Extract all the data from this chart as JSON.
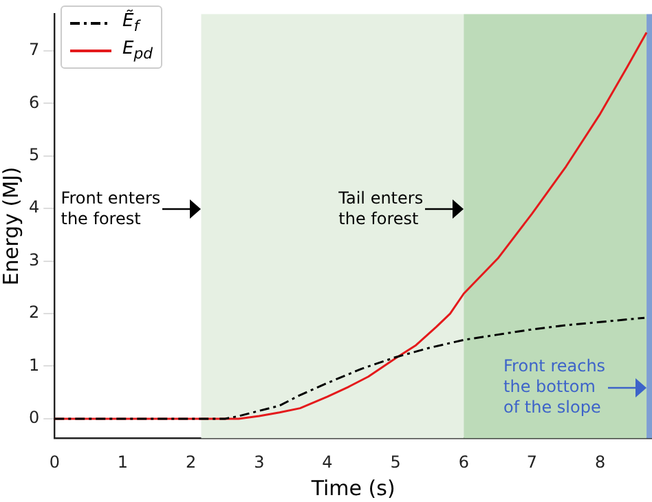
{
  "chart_data": {
    "type": "line",
    "xlabel": "Time (s)",
    "ylabel": "Energy (MJ)",
    "xlim": [
      0,
      8.76
    ],
    "ylim": [
      -0.37,
      7.7
    ],
    "xticks": [
      0,
      1,
      2,
      3,
      4,
      5,
      6,
      7,
      8
    ],
    "yticks": [
      0,
      1,
      2,
      3,
      4,
      5,
      6,
      7
    ],
    "grid": false,
    "legend": "top left",
    "marker": "none",
    "series": [
      {
        "name": "Ẽ$_{f}$",
        "color": "#000000",
        "line_style": "dashed",
        "x": [
          0,
          1,
          2,
          2.5,
          2.7,
          3,
          3.3,
          3.6,
          4,
          4.5,
          5,
          5.5,
          6,
          6.5,
          7,
          7.5,
          8,
          8.65
        ],
        "values": [
          0,
          0,
          0,
          0,
          0.05,
          0.15,
          0.25,
          0.45,
          0.68,
          0.95,
          1.17,
          1.35,
          1.5,
          1.6,
          1.7,
          1.78,
          1.84,
          1.92
        ]
      },
      {
        "name": "E$_{pd}$",
        "color": "#e41a1c",
        "line_style": "solid",
        "x": [
          0,
          1,
          2,
          2.7,
          3,
          3.3,
          3.6,
          4,
          4.3,
          4.6,
          5,
          5.3,
          5.6,
          5.8,
          6,
          6.5,
          7,
          7.5,
          8,
          8.4,
          8.68
        ],
        "values": [
          0,
          0,
          0,
          0,
          0.05,
          0.12,
          0.2,
          0.42,
          0.6,
          0.8,
          1.15,
          1.4,
          1.75,
          2.0,
          2.38,
          3.05,
          3.9,
          4.8,
          5.8,
          6.7,
          7.35
        ]
      }
    ],
    "bands": [
      {
        "axis": "x",
        "from": 2.15,
        "to": 6,
        "color": "#e6f0e3"
      },
      {
        "axis": "x",
        "from": 6,
        "to": 8.68,
        "color": "#bddbb9"
      },
      {
        "axis": "x",
        "from": 8.68,
        "to": 8.76,
        "color": "#7f9fd3"
      }
    ],
    "annotations": [
      "Front enters\nthe forest",
      "Tail enters\nthe forest",
      "Front reachs\nthe bottom\nof the slope"
    ]
  }
}
